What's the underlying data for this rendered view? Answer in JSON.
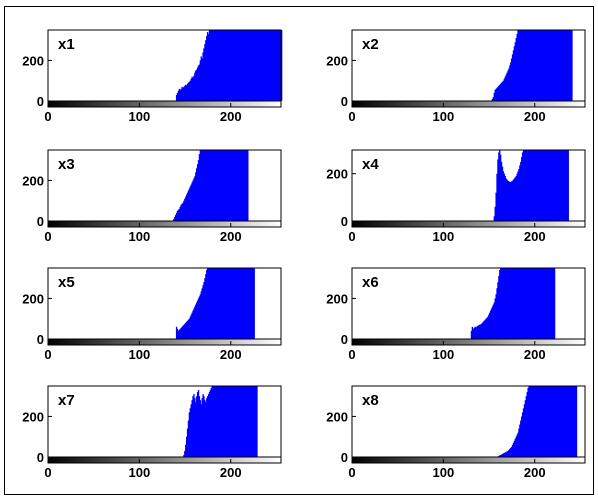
{
  "colors": {
    "bars": "#0000ff",
    "axes": "#000000",
    "background": "#ffffff"
  },
  "chart_data": [
    {
      "type": "bar",
      "panel_label": "x1",
      "xlim": [
        0,
        255
      ],
      "ylim": [
        0,
        350
      ],
      "xticks": [
        0,
        100,
        200
      ],
      "yticks": [
        0,
        200
      ],
      "colorbar": "grayscale 0–255 gradient under x-axis",
      "bins_start": 140,
      "values": [
        30,
        40,
        50,
        60,
        55,
        60,
        70,
        65,
        70,
        75,
        80,
        78,
        85,
        90,
        95,
        100,
        110,
        120,
        115,
        125,
        140,
        150,
        155,
        165,
        175,
        180,
        200,
        220,
        210,
        240,
        260,
        280,
        300,
        320,
        340,
        330,
        350,
        350,
        350,
        350,
        350,
        350,
        350,
        350,
        350,
        350,
        350,
        350,
        350,
        350,
        350,
        350,
        350,
        350,
        350,
        350,
        350,
        350,
        350,
        350,
        350,
        350,
        350,
        350,
        350,
        350,
        350,
        350,
        350,
        350,
        350,
        350,
        350,
        350,
        350,
        350,
        350,
        350,
        350,
        350,
        350,
        350,
        350,
        350,
        350,
        350,
        350,
        350,
        350,
        350,
        350,
        350,
        350,
        350,
        350,
        350,
        350,
        350,
        350,
        350,
        350,
        350,
        350,
        350,
        350,
        350,
        350,
        350,
        350,
        350,
        350,
        350,
        350,
        350,
        350,
        350
      ]
    },
    {
      "type": "bar",
      "panel_label": "x2",
      "xlim": [
        0,
        255
      ],
      "ylim": [
        0,
        350
      ],
      "xticks": [
        0,
        100,
        200
      ],
      "yticks": [
        0,
        200
      ],
      "colorbar": "grayscale 0–255 gradient under x-axis",
      "bins_start": 153,
      "values": [
        10,
        20,
        40,
        55,
        60,
        65,
        70,
        75,
        80,
        85,
        90,
        95,
        100,
        110,
        120,
        130,
        140,
        150,
        160,
        175,
        190,
        210,
        230,
        250,
        270,
        290,
        310,
        330,
        350,
        350,
        350,
        350,
        350,
        350,
        350,
        350,
        350,
        350,
        350,
        350,
        350,
        350,
        350,
        350,
        350,
        350,
        350,
        350,
        350,
        350,
        350,
        350,
        350,
        350,
        350,
        350,
        350,
        350,
        350,
        350,
        350,
        350,
        350,
        350,
        350,
        350,
        350,
        350,
        350,
        350,
        350,
        350,
        350,
        350,
        350,
        350,
        350,
        350,
        350,
        350,
        350,
        350,
        350,
        350,
        350,
        350,
        350,
        350
      ]
    },
    {
      "type": "bar",
      "panel_label": "x3",
      "xlim": [
        0,
        255
      ],
      "ylim": [
        0,
        350
      ],
      "xticks": [
        0,
        100,
        200
      ],
      "yticks": [
        0,
        200
      ],
      "colorbar": "grayscale 0–255 gradient under x-axis",
      "bins_start": 137,
      "values": [
        10,
        20,
        30,
        40,
        50,
        55,
        60,
        70,
        80,
        85,
        90,
        100,
        110,
        120,
        130,
        140,
        150,
        160,
        170,
        180,
        190,
        200,
        210,
        220,
        240,
        260,
        280,
        300,
        330,
        350,
        350,
        350,
        350,
        350,
        350,
        350,
        350,
        350,
        350,
        350,
        350,
        350,
        350,
        350,
        350,
        350,
        350,
        350,
        350,
        350,
        350,
        350,
        350,
        350,
        350,
        350,
        350,
        350,
        350,
        350,
        350,
        350,
        350,
        350,
        350,
        350,
        350,
        350,
        350,
        350,
        350,
        350,
        350,
        350,
        350,
        350,
        350,
        350,
        350,
        350,
        350,
        350
      ]
    },
    {
      "type": "bar",
      "panel_label": "x4",
      "xlim": [
        0,
        255
      ],
      "ylim": [
        0,
        300
      ],
      "xticks": [
        0,
        100,
        200
      ],
      "yticks": [
        0,
        200
      ],
      "colorbar": "grayscale 0–255 gradient under x-axis",
      "bins_start": 155,
      "values": [
        20,
        60,
        120,
        200,
        260,
        290,
        300,
        280,
        250,
        230,
        210,
        200,
        190,
        180,
        175,
        170,
        168,
        165,
        165,
        168,
        170,
        175,
        180,
        185,
        190,
        200,
        210,
        220,
        235,
        250,
        270,
        290,
        300,
        300,
        300,
        300,
        300,
        300,
        300,
        300,
        300,
        300,
        300,
        300,
        300,
        300,
        300,
        300,
        300,
        300,
        300,
        300,
        300,
        300,
        300,
        300,
        300,
        300,
        300,
        300,
        300,
        300,
        300,
        300,
        300,
        300,
        300,
        300,
        300,
        300,
        300,
        300,
        300,
        300,
        300,
        300,
        300,
        300,
        300,
        300,
        300,
        300
      ]
    },
    {
      "type": "bar",
      "panel_label": "x5",
      "xlim": [
        0,
        255
      ],
      "ylim": [
        0,
        350
      ],
      "xticks": [
        0,
        100,
        200
      ],
      "yticks": [
        0,
        200
      ],
      "colorbar": "grayscale 0–255 gradient under x-axis",
      "bins_start": 140,
      "values": [
        60,
        50,
        40,
        45,
        50,
        55,
        60,
        65,
        70,
        75,
        80,
        85,
        90,
        95,
        100,
        110,
        120,
        130,
        140,
        150,
        160,
        170,
        180,
        190,
        200,
        210,
        220,
        235,
        250,
        265,
        280,
        300,
        320,
        340,
        350,
        350,
        350,
        350,
        350,
        350,
        350,
        350,
        350,
        350,
        350,
        350,
        350,
        350,
        350,
        350,
        350,
        350,
        350,
        350,
        350,
        350,
        350,
        350,
        350,
        350,
        350,
        350,
        350,
        350,
        350,
        350,
        350,
        350,
        350,
        350,
        350,
        350,
        350,
        350,
        350,
        350,
        350,
        350,
        350,
        350,
        350,
        350,
        350,
        350,
        350,
        350
      ]
    },
    {
      "type": "bar",
      "panel_label": "x6",
      "xlim": [
        0,
        255
      ],
      "ylim": [
        0,
        350
      ],
      "xticks": [
        0,
        100,
        200
      ],
      "yticks": [
        0,
        200
      ],
      "colorbar": "grayscale 0–255 gradient under x-axis",
      "bins_start": 130,
      "values": [
        40,
        60,
        50,
        55,
        60,
        58,
        62,
        65,
        68,
        70,
        72,
        75,
        80,
        85,
        90,
        95,
        100,
        105,
        110,
        120,
        130,
        140,
        150,
        160,
        170,
        180,
        200,
        220,
        250,
        280,
        310,
        340,
        350,
        350,
        350,
        350,
        350,
        350,
        350,
        350,
        350,
        350,
        350,
        350,
        350,
        350,
        350,
        350,
        350,
        350,
        350,
        350,
        350,
        350,
        350,
        350,
        350,
        350,
        350,
        350,
        350,
        350,
        350,
        350,
        350,
        350,
        350,
        350,
        350,
        350,
        350,
        350,
        350,
        350,
        350,
        350,
        350,
        350,
        350,
        350,
        350,
        350,
        350,
        350,
        350,
        350,
        350,
        350,
        350,
        350,
        350,
        350
      ]
    },
    {
      "type": "bar",
      "panel_label": "x7",
      "xlim": [
        0,
        255
      ],
      "ylim": [
        0,
        350
      ],
      "xticks": [
        0,
        100,
        200
      ],
      "yticks": [
        0,
        200
      ],
      "colorbar": "grayscale 0–255 gradient under x-axis",
      "bins_start": 148,
      "values": [
        10,
        30,
        60,
        100,
        140,
        180,
        220,
        240,
        260,
        280,
        300,
        310,
        290,
        270,
        300,
        320,
        330,
        300,
        280,
        260,
        290,
        310,
        300,
        280,
        270,
        290,
        300,
        310,
        320,
        330,
        340,
        350,
        350,
        350,
        350,
        350,
        350,
        350,
        350,
        350,
        350,
        350,
        350,
        350,
        350,
        350,
        350,
        350,
        350,
        350,
        350,
        350,
        350,
        350,
        350,
        350,
        350,
        350,
        350,
        350,
        350,
        350,
        350,
        350,
        350,
        350,
        350,
        350,
        350,
        350,
        350,
        350,
        350,
        350,
        350,
        350,
        350,
        350,
        350,
        350,
        350
      ]
    },
    {
      "type": "bar",
      "panel_label": "x8",
      "xlim": [
        0,
        255
      ],
      "ylim": [
        0,
        350
      ],
      "xticks": [
        0,
        100,
        200
      ],
      "yticks": [
        0,
        200
      ],
      "colorbar": "grayscale 0–255 gradient under x-axis",
      "bins_start": 160,
      "values": [
        5,
        8,
        10,
        12,
        15,
        18,
        20,
        22,
        25,
        28,
        30,
        35,
        40,
        45,
        50,
        60,
        70,
        80,
        90,
        100,
        110,
        120,
        140,
        160,
        180,
        200,
        220,
        240,
        260,
        280,
        300,
        320,
        340,
        350,
        350,
        350,
        350,
        350,
        350,
        350,
        350,
        350,
        350,
        350,
        350,
        350,
        350,
        350,
        350,
        350,
        350,
        350,
        350,
        350,
        350,
        350,
        350,
        350,
        350,
        350,
        350,
        350,
        350,
        350,
        350,
        350,
        350,
        350,
        350,
        350,
        350,
        350,
        350,
        350,
        350,
        350,
        350,
        350,
        350,
        350,
        350,
        350,
        350,
        350,
        350,
        350
      ]
    }
  ]
}
